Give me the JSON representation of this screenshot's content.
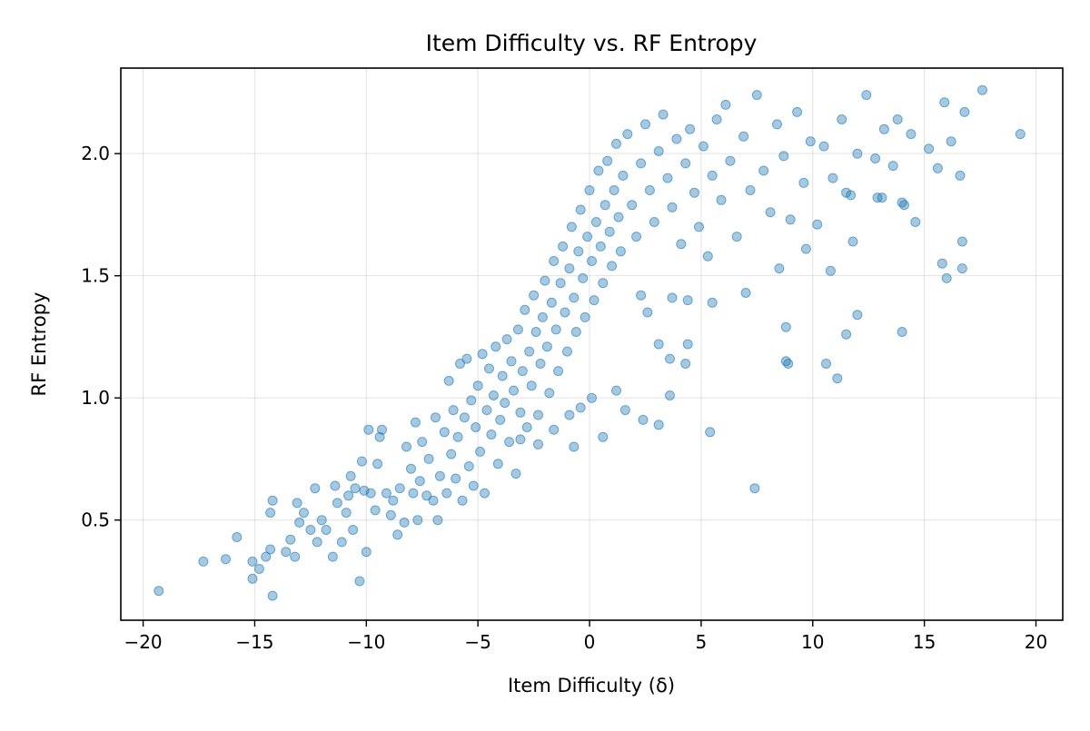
{
  "chart_data": {
    "type": "scatter",
    "title": "Item Difficulty vs. RF Entropy",
    "xlabel": "Item Difficulty (δ)",
    "ylabel": "RF Entropy",
    "xlim": [
      -21,
      21.2
    ],
    "ylim": [
      0.09,
      2.35
    ],
    "xticks": [
      -20,
      -15,
      -10,
      -5,
      0,
      5,
      10,
      15,
      20
    ],
    "xtick_labels": [
      "−20",
      "−15",
      "−10",
      "−5",
      "0",
      "5",
      "10",
      "15",
      "20"
    ],
    "yticks": [
      0.5,
      1.0,
      1.5,
      2.0
    ],
    "ytick_labels": [
      "0.5",
      "1.0",
      "1.5",
      "2.0"
    ],
    "grid": true,
    "legend": "none",
    "point_color": "#1f77b4",
    "point_opacity": 0.4,
    "approx_point_count": 1500,
    "points": [
      [
        -19.3,
        0.21
      ],
      [
        -17.3,
        0.33
      ],
      [
        -16.3,
        0.34
      ],
      [
        -15.8,
        0.43
      ],
      [
        -15.1,
        0.33
      ],
      [
        -15.1,
        0.26
      ],
      [
        -14.8,
        0.3
      ],
      [
        -14.5,
        0.35
      ],
      [
        -14.3,
        0.38
      ],
      [
        -14.2,
        0.19
      ],
      [
        -14.2,
        0.58
      ],
      [
        -14.3,
        0.53
      ],
      [
        -13.6,
        0.37
      ],
      [
        -13.4,
        0.42
      ],
      [
        -13.2,
        0.35
      ],
      [
        -13.1,
        0.57
      ],
      [
        -13.0,
        0.49
      ],
      [
        -12.8,
        0.53
      ],
      [
        -12.5,
        0.46
      ],
      [
        -12.3,
        0.63
      ],
      [
        -12.2,
        0.41
      ],
      [
        -12.0,
        0.5
      ],
      [
        -11.8,
        0.46
      ],
      [
        -11.5,
        0.35
      ],
      [
        -11.4,
        0.64
      ],
      [
        -11.3,
        0.57
      ],
      [
        -11.1,
        0.41
      ],
      [
        -10.9,
        0.53
      ],
      [
        -10.8,
        0.6
      ],
      [
        -10.7,
        0.68
      ],
      [
        -10.6,
        0.46
      ],
      [
        -10.5,
        0.63
      ],
      [
        -10.3,
        0.25
      ],
      [
        -10.2,
        0.74
      ],
      [
        -10.1,
        0.62
      ],
      [
        -10.0,
        0.37
      ],
      [
        -9.9,
        0.87
      ],
      [
        -9.8,
        0.61
      ],
      [
        -9.6,
        0.54
      ],
      [
        -9.5,
        0.73
      ],
      [
        -9.4,
        0.84
      ],
      [
        -9.3,
        0.87
      ],
      [
        -9.1,
        0.61
      ],
      [
        -8.9,
        0.52
      ],
      [
        -8.8,
        0.58
      ],
      [
        -8.6,
        0.44
      ],
      [
        -8.5,
        0.63
      ],
      [
        -8.3,
        0.49
      ],
      [
        -8.2,
        0.8
      ],
      [
        -8.0,
        0.71
      ],
      [
        -7.9,
        0.61
      ],
      [
        -7.8,
        0.9
      ],
      [
        -7.7,
        0.5
      ],
      [
        -7.6,
        0.66
      ],
      [
        -7.5,
        0.82
      ],
      [
        -7.3,
        0.6
      ],
      [
        -7.2,
        0.75
      ],
      [
        -7.0,
        0.58
      ],
      [
        -6.9,
        0.92
      ],
      [
        -6.8,
        0.5
      ],
      [
        -6.7,
        0.68
      ],
      [
        -6.5,
        0.86
      ],
      [
        -6.4,
        0.61
      ],
      [
        -6.3,
        1.07
      ],
      [
        -6.2,
        0.77
      ],
      [
        -6.1,
        0.95
      ],
      [
        -6.0,
        0.67
      ],
      [
        -5.9,
        0.84
      ],
      [
        -5.8,
        1.14
      ],
      [
        -5.7,
        0.58
      ],
      [
        -5.6,
        0.92
      ],
      [
        -5.5,
        1.16
      ],
      [
        -5.4,
        0.72
      ],
      [
        -5.3,
        0.99
      ],
      [
        -5.2,
        0.64
      ],
      [
        -5.1,
        0.88
      ],
      [
        -5.0,
        1.05
      ],
      [
        -4.9,
        0.78
      ],
      [
        -4.8,
        1.18
      ],
      [
        -4.7,
        0.61
      ],
      [
        -4.6,
        0.95
      ],
      [
        -4.5,
        1.12
      ],
      [
        -4.4,
        0.85
      ],
      [
        -4.3,
        1.01
      ],
      [
        -4.2,
        1.21
      ],
      [
        -4.1,
        0.73
      ],
      [
        -4.0,
        0.91
      ],
      [
        -3.9,
        1.09
      ],
      [
        -3.8,
        0.98
      ],
      [
        -3.7,
        1.24
      ],
      [
        -3.6,
        0.82
      ],
      [
        -3.5,
        1.15
      ],
      [
        -3.4,
        1.03
      ],
      [
        -3.3,
        0.69
      ],
      [
        -3.2,
        1.28
      ],
      [
        -3.1,
        0.94
      ],
      [
        -3.0,
        1.11
      ],
      [
        -2.9,
        1.36
      ],
      [
        -2.8,
        0.88
      ],
      [
        -2.7,
        1.19
      ],
      [
        -2.6,
        1.05
      ],
      [
        -2.5,
        1.42
      ],
      [
        -2.4,
        1.27
      ],
      [
        -2.3,
        0.93
      ],
      [
        -2.2,
        1.14
      ],
      [
        -2.1,
        1.33
      ],
      [
        -2.0,
        1.48
      ],
      [
        -1.9,
        1.21
      ],
      [
        -1.8,
        1.02
      ],
      [
        -1.7,
        1.39
      ],
      [
        -1.6,
        1.56
      ],
      [
        -1.5,
        1.28
      ],
      [
        -1.4,
        1.11
      ],
      [
        -1.3,
        1.47
      ],
      [
        -1.2,
        1.62
      ],
      [
        -1.1,
        1.35
      ],
      [
        -1.0,
        1.19
      ],
      [
        -0.9,
        1.53
      ],
      [
        -0.8,
        1.7
      ],
      [
        -0.7,
        1.41
      ],
      [
        -0.6,
        1.27
      ],
      [
        -0.5,
        1.6
      ],
      [
        -0.4,
        1.77
      ],
      [
        -0.3,
        1.49
      ],
      [
        -0.2,
        1.33
      ],
      [
        -0.1,
        1.66
      ],
      [
        0.0,
        1.85
      ],
      [
        0.1,
        1.56
      ],
      [
        0.2,
        1.4
      ],
      [
        0.3,
        1.72
      ],
      [
        0.4,
        1.93
      ],
      [
        0.5,
        1.62
      ],
      [
        0.6,
        1.47
      ],
      [
        0.7,
        1.79
      ],
      [
        0.8,
        1.97
      ],
      [
        0.9,
        1.68
      ],
      [
        1.0,
        1.54
      ],
      [
        1.1,
        1.85
      ],
      [
        1.2,
        2.04
      ],
      [
        1.3,
        1.74
      ],
      [
        1.4,
        1.6
      ],
      [
        1.5,
        1.91
      ],
      [
        1.7,
        2.08
      ],
      [
        1.9,
        1.79
      ],
      [
        2.1,
        1.66
      ],
      [
        2.3,
        1.96
      ],
      [
        2.5,
        2.12
      ],
      [
        2.7,
        1.85
      ],
      [
        2.9,
        1.72
      ],
      [
        3.1,
        2.01
      ],
      [
        3.3,
        2.16
      ],
      [
        3.5,
        1.9
      ],
      [
        3.7,
        1.78
      ],
      [
        3.9,
        2.06
      ],
      [
        4.1,
        1.63
      ],
      [
        4.3,
        1.96
      ],
      [
        4.5,
        2.1
      ],
      [
        4.7,
        1.84
      ],
      [
        4.9,
        1.7
      ],
      [
        5.1,
        2.03
      ],
      [
        5.3,
        1.58
      ],
      [
        5.5,
        1.91
      ],
      [
        5.7,
        2.14
      ],
      [
        5.9,
        1.81
      ],
      [
        6.1,
        2.2
      ],
      [
        6.3,
        1.97
      ],
      [
        6.6,
        1.66
      ],
      [
        6.9,
        2.07
      ],
      [
        7.2,
        1.85
      ],
      [
        7.5,
        2.24
      ],
      [
        7.8,
        1.93
      ],
      [
        8.1,
        1.76
      ],
      [
        8.4,
        2.12
      ],
      [
        8.7,
        1.99
      ],
      [
        9.0,
        1.73
      ],
      [
        9.3,
        2.17
      ],
      [
        9.6,
        1.88
      ],
      [
        9.9,
        2.05
      ],
      [
        10.2,
        1.71
      ],
      [
        10.5,
        2.03
      ],
      [
        10.9,
        1.9
      ],
      [
        11.3,
        2.14
      ],
      [
        11.7,
        1.83
      ],
      [
        12.0,
        2.0
      ],
      [
        12.4,
        2.24
      ],
      [
        12.8,
        1.98
      ],
      [
        13.2,
        2.1
      ],
      [
        13.6,
        1.95
      ],
      [
        14.0,
        1.8
      ],
      [
        14.6,
        1.72
      ],
      [
        15.2,
        2.02
      ],
      [
        15.6,
        1.94
      ],
      [
        15.8,
        1.55
      ],
      [
        16.0,
        1.49
      ],
      [
        16.2,
        2.05
      ],
      [
        16.6,
        1.91
      ],
      [
        16.7,
        1.64
      ],
      [
        16.7,
        1.53
      ],
      [
        16.8,
        2.17
      ],
      [
        17.6,
        2.26
      ],
      [
        19.3,
        2.08
      ],
      [
        15.9,
        2.21
      ],
      [
        14.4,
        2.08
      ],
      [
        13.8,
        2.14
      ],
      [
        13.1,
        1.82
      ],
      [
        -3.1,
        0.83
      ],
      [
        -2.3,
        0.81
      ],
      [
        -1.6,
        0.87
      ],
      [
        -0.9,
        0.93
      ],
      [
        -0.7,
        0.8
      ],
      [
        -0.4,
        0.96
      ],
      [
        0.1,
        1.0
      ],
      [
        0.6,
        0.84
      ],
      [
        1.2,
        1.03
      ],
      [
        1.6,
        0.95
      ],
      [
        2.4,
        0.91
      ],
      [
        3.1,
        0.89
      ],
      [
        3.6,
        1.01
      ],
      [
        5.4,
        0.86
      ],
      [
        7.4,
        0.63
      ],
      [
        8.8,
        1.15
      ],
      [
        8.9,
        1.14
      ],
      [
        10.6,
        1.14
      ],
      [
        11.1,
        1.08
      ],
      [
        11.5,
        1.26
      ],
      [
        12.0,
        1.34
      ],
      [
        14.0,
        1.27
      ],
      [
        8.8,
        1.29
      ],
      [
        4.4,
        1.22
      ],
      [
        3.6,
        1.16
      ],
      [
        3.1,
        1.22
      ],
      [
        4.3,
        1.14
      ],
      [
        2.3,
        1.42
      ],
      [
        2.6,
        1.35
      ],
      [
        3.7,
        1.41
      ],
      [
        4.4,
        1.4
      ],
      [
        5.5,
        1.39
      ],
      [
        7.0,
        1.43
      ],
      [
        8.5,
        1.53
      ],
      [
        9.7,
        1.61
      ],
      [
        10.8,
        1.52
      ],
      [
        11.8,
        1.64
      ],
      [
        14.1,
        1.79
      ],
      [
        11.5,
        1.84
      ],
      [
        12.9,
        1.82
      ]
    ]
  }
}
